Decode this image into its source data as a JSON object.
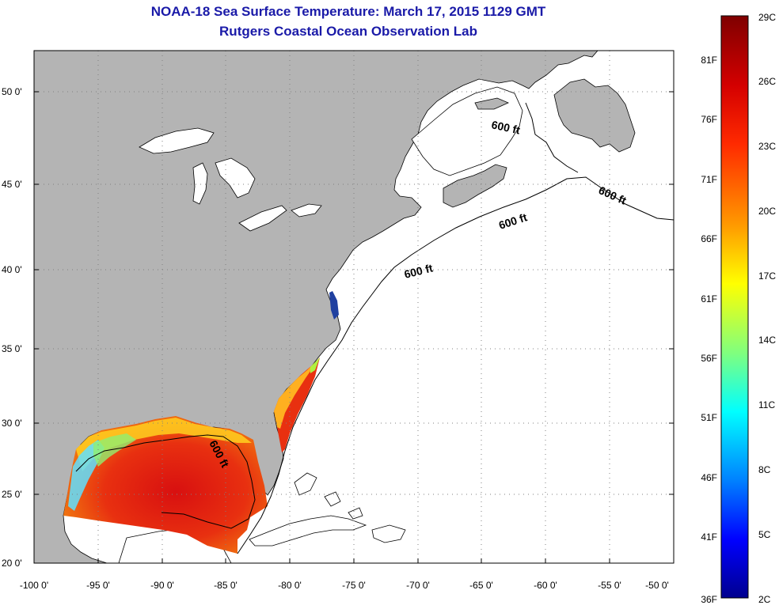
{
  "title": {
    "line1": "NOAA-18 Sea Surface Temperature:  March 17, 2015 1129 GMT",
    "line2": "Rutgers Coastal Ocean Observation Lab"
  },
  "map": {
    "lat_labels": [
      "50 0'",
      "45 0'",
      "40 0'",
      "35 0'",
      "30 0'",
      "25 0'",
      "20 0'"
    ],
    "lon_labels": [
      "-100 0'",
      "-95 0'",
      "-90 0'",
      "-85 0'",
      "-80 0'",
      "-75 0'",
      "-70 0'",
      "-65 0'",
      "-60 0'",
      "-55 0'",
      "-50 0'"
    ],
    "contour_label": "600 ft",
    "colors": {
      "land": "#b4b4b4",
      "ocean_nodata": "#ffffff",
      "grid": "#808080"
    }
  },
  "colorbar": {
    "celsius_labels": [
      "29C",
      "26C",
      "23C",
      "20C",
      "17C",
      "14C",
      "11C",
      "8C",
      "5C",
      "2C"
    ],
    "fahrenheit_labels": [
      "81F",
      "76F",
      "71F",
      "66F",
      "61F",
      "56F",
      "51F",
      "46F",
      "41F",
      "36F"
    ],
    "colors": [
      "#7f0000",
      "#ff0000",
      "#ff7f00",
      "#ffff00",
      "#7fff7f",
      "#00ffff",
      "#007fff",
      "#0000ff",
      "#00008f"
    ]
  }
}
